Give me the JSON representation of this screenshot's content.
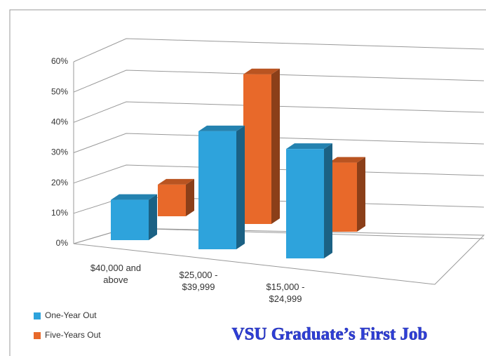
{
  "chart_data": {
    "type": "bar3d",
    "title": "VSU Graduate’s First Job",
    "categories": [
      "$40,000 and above",
      "$25,000 - $39,999",
      "$15,000 - $24,999"
    ],
    "series": [
      {
        "name": "One-Year Out",
        "color": "#2ea3dc",
        "values": [
          14,
          41,
          38
        ]
      },
      {
        "name": "Five-Years Out",
        "color": "#e8692a",
        "values": [
          11,
          52,
          24
        ]
      }
    ],
    "ylim": [
      0,
      60
    ],
    "yticks": [
      {
        "value": 0,
        "label": "0%"
      },
      {
        "value": 10,
        "label": "10%"
      },
      {
        "value": 20,
        "label": "20%"
      },
      {
        "value": 30,
        "label": "30%"
      },
      {
        "value": 40,
        "label": "40%"
      },
      {
        "value": 50,
        "label": "50%"
      },
      {
        "value": 60,
        "label": "60%"
      }
    ],
    "grid": true,
    "legend": "bottom-left"
  }
}
